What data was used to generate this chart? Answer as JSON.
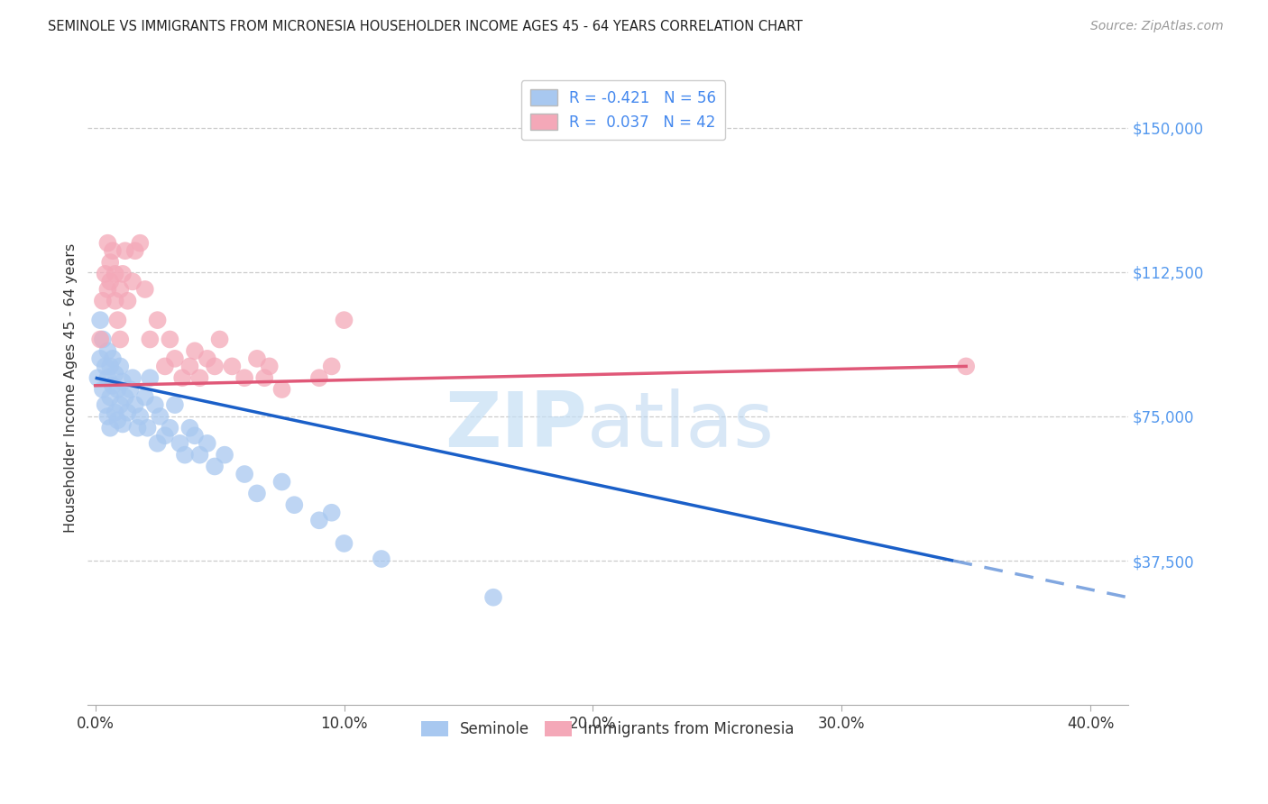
{
  "title": "SEMINOLE VS IMMIGRANTS FROM MICRONESIA HOUSEHOLDER INCOME AGES 45 - 64 YEARS CORRELATION CHART",
  "source": "Source: ZipAtlas.com",
  "ylabel": "Householder Income Ages 45 - 64 years",
  "xlabel_ticks": [
    "0.0%",
    "10.0%",
    "20.0%",
    "30.0%",
    "40.0%"
  ],
  "xlabel_tick_vals": [
    0.0,
    0.1,
    0.2,
    0.3,
    0.4
  ],
  "ytick_labels": [
    "$37,500",
    "$75,000",
    "$112,500",
    "$150,000"
  ],
  "ytick_vals": [
    37500,
    75000,
    112500,
    150000
  ],
  "ylim": [
    0,
    165000
  ],
  "xlim": [
    -0.003,
    0.415
  ],
  "seminole_R": -0.421,
  "seminole_N": 56,
  "micronesia_R": 0.037,
  "micronesia_N": 42,
  "seminole_color": "#a8c8f0",
  "micronesia_color": "#f4a8b8",
  "seminole_line_color": "#1a5fc8",
  "micronesia_line_color": "#e05878",
  "seminole_x": [
    0.001,
    0.002,
    0.002,
    0.003,
    0.003,
    0.004,
    0.004,
    0.005,
    0.005,
    0.005,
    0.006,
    0.006,
    0.006,
    0.007,
    0.007,
    0.008,
    0.008,
    0.009,
    0.009,
    0.01,
    0.01,
    0.011,
    0.011,
    0.012,
    0.013,
    0.014,
    0.015,
    0.016,
    0.017,
    0.018,
    0.02,
    0.021,
    0.022,
    0.024,
    0.025,
    0.026,
    0.028,
    0.03,
    0.032,
    0.034,
    0.036,
    0.038,
    0.04,
    0.042,
    0.045,
    0.048,
    0.052,
    0.06,
    0.065,
    0.075,
    0.08,
    0.09,
    0.095,
    0.1,
    0.115,
    0.16
  ],
  "seminole_y": [
    85000,
    100000,
    90000,
    95000,
    82000,
    88000,
    78000,
    92000,
    85000,
    75000,
    88000,
    80000,
    72000,
    90000,
    83000,
    86000,
    76000,
    82000,
    74000,
    88000,
    78000,
    84000,
    73000,
    80000,
    76000,
    82000,
    85000,
    78000,
    72000,
    75000,
    80000,
    72000,
    85000,
    78000,
    68000,
    75000,
    70000,
    72000,
    78000,
    68000,
    65000,
    72000,
    70000,
    65000,
    68000,
    62000,
    65000,
    60000,
    55000,
    58000,
    52000,
    48000,
    50000,
    42000,
    38000,
    28000
  ],
  "micronesia_x": [
    0.002,
    0.003,
    0.004,
    0.005,
    0.005,
    0.006,
    0.006,
    0.007,
    0.008,
    0.008,
    0.009,
    0.01,
    0.01,
    0.011,
    0.012,
    0.013,
    0.015,
    0.016,
    0.018,
    0.02,
    0.022,
    0.025,
    0.028,
    0.03,
    0.032,
    0.035,
    0.038,
    0.04,
    0.042,
    0.045,
    0.048,
    0.05,
    0.055,
    0.06,
    0.065,
    0.068,
    0.07,
    0.075,
    0.09,
    0.095,
    0.1,
    0.35
  ],
  "micronesia_y": [
    95000,
    105000,
    112000,
    120000,
    108000,
    115000,
    110000,
    118000,
    105000,
    112000,
    100000,
    108000,
    95000,
    112000,
    118000,
    105000,
    110000,
    118000,
    120000,
    108000,
    95000,
    100000,
    88000,
    95000,
    90000,
    85000,
    88000,
    92000,
    85000,
    90000,
    88000,
    95000,
    88000,
    85000,
    90000,
    85000,
    88000,
    82000,
    85000,
    88000,
    100000,
    88000
  ],
  "sem_line_x0": 0.0,
  "sem_line_y0": 85000,
  "sem_line_x1": 0.345,
  "sem_line_y1": 37500,
  "sem_line_dash_x1": 0.415,
  "sem_line_dash_y1": 28000,
  "mic_line_x0": 0.0,
  "mic_line_y0": 83000,
  "mic_line_x1": 0.35,
  "mic_line_y1": 88000
}
